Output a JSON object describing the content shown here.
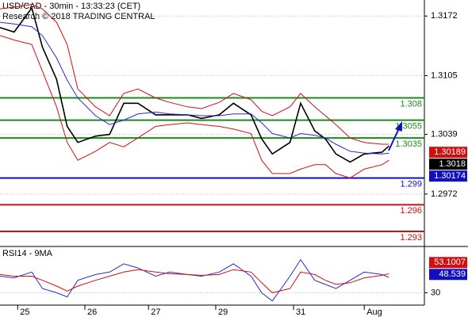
{
  "chart_data": [
    {
      "type": "line",
      "title": "USD/CAD - 30min - 13:33:23 (CET)",
      "subtitle": "Research © 2018 TRADING CENTRAL",
      "x": [
        0,
        4,
        9,
        12,
        16,
        19,
        22,
        27,
        31,
        35,
        39,
        44,
        48,
        53,
        57,
        62,
        66,
        71,
        74,
        77,
        82,
        85,
        89,
        92,
        95,
        99,
        103,
        108,
        110
      ],
      "xlim": [
        0,
        120
      ],
      "xticks": [
        {
          "value": 5,
          "label": "25"
        },
        {
          "value": 24,
          "label": "26"
        },
        {
          "value": 42,
          "label": "27"
        },
        {
          "value": 61,
          "label": "29"
        },
        {
          "value": 83,
          "label": "31"
        },
        {
          "value": 103,
          "label": "Aug"
        }
      ],
      "ylim": [
        1.319,
        1.2914
      ],
      "yticks": [
        1.3172,
        1.3105,
        1.3039,
        1.2972
      ],
      "grid": true,
      "series": [
        {
          "color": "#000000",
          "values": [
            1.3159,
            1.3154,
            1.3181,
            1.3137,
            1.3101,
            1.3048,
            1.303,
            1.3037,
            1.3039,
            1.3074,
            1.3074,
            1.3061,
            1.3061,
            1.3061,
            1.3057,
            1.3061,
            1.3074,
            1.3061,
            1.3034,
            1.3017,
            1.303,
            1.3074,
            1.3043,
            1.3034,
            1.3017,
            1.3008,
            1.3017,
            1.3019,
            1.3026
          ]
        },
        {
          "color": "#2a2ad0",
          "values": [
            1.3165,
            1.3163,
            1.316,
            1.315,
            1.3125,
            1.31,
            1.308,
            1.306,
            1.305,
            1.3055,
            1.3062,
            1.3064,
            1.3062,
            1.3061,
            1.306,
            1.306,
            1.3062,
            1.3062,
            1.3052,
            1.304,
            1.3035,
            1.304,
            1.3038,
            1.3035,
            1.3028,
            1.302,
            1.3018,
            1.3017,
            1.3018
          ]
        },
        {
          "color": "#d01010",
          "values": [
            1.318,
            1.3182,
            1.3185,
            1.318,
            1.3165,
            1.314,
            1.309,
            1.307,
            1.306,
            1.3085,
            1.309,
            1.308,
            1.3075,
            1.307,
            1.3068,
            1.3075,
            1.3085,
            1.3078,
            1.3065,
            1.306,
            1.307,
            1.3085,
            1.307,
            1.306,
            1.305,
            1.3035,
            1.303,
            1.3028,
            1.3028
          ]
        },
        {
          "color": "#d01010",
          "values": [
            1.315,
            1.3145,
            1.314,
            1.311,
            1.307,
            1.303,
            1.301,
            1.302,
            1.303,
            1.3025,
            1.3035,
            1.3048,
            1.305,
            1.3052,
            1.305,
            1.3048,
            1.3045,
            1.304,
            1.301,
            1.2995,
            1.2995,
            1.3,
            1.3005,
            1.3005,
            1.2995,
            1.299,
            1.3,
            1.3005,
            1.301
          ]
        }
      ],
      "levels": [
        {
          "value": 1.308,
          "color": "#1a8a1a"
        },
        {
          "value": 1.3055,
          "color": "#1a8a1a"
        },
        {
          "value": 1.3035,
          "color": "#1a8a1a"
        },
        {
          "value": 1.299,
          "color": "#1010c0"
        },
        {
          "value": 1.296,
          "color": "#d01010"
        },
        {
          "value": 1.293,
          "color": "#d01010"
        }
      ],
      "price_tags": [
        {
          "value": 1.30189,
          "color": "#d01010"
        },
        {
          "value": 1.3018,
          "color": "#000000"
        },
        {
          "value": 1.30174,
          "color": "#1010c0"
        }
      ]
    },
    {
      "type": "line",
      "title": "RSI14 - 9MA",
      "x": [
        0,
        4,
        9,
        12,
        16,
        19,
        22,
        27,
        31,
        35,
        39,
        44,
        48,
        53,
        57,
        62,
        66,
        71,
        74,
        77,
        82,
        85,
        89,
        92,
        95,
        99,
        103,
        108,
        110
      ],
      "xlim": [
        0,
        120
      ],
      "ylim": [
        85,
        15
      ],
      "yticks": [
        30
      ],
      "series": [
        {
          "color": "#2a2ad0",
          "values": [
            50,
            48,
            55,
            35,
            30,
            25,
            45,
            52,
            55,
            65,
            60,
            50,
            55,
            52,
            50,
            55,
            65,
            50,
            30,
            20,
            50,
            70,
            45,
            40,
            35,
            45,
            55,
            52,
            48.5
          ]
        },
        {
          "color": "#d01010",
          "values": [
            52,
            50,
            50,
            45,
            38,
            32,
            38,
            45,
            50,
            55,
            58,
            55,
            53,
            52,
            51,
            52,
            58,
            55,
            42,
            30,
            35,
            55,
            52,
            45,
            40,
            42,
            48,
            51,
            53.1
          ]
        }
      ],
      "last_tags": [
        {
          "value": 53.1007,
          "color": "#d01010"
        },
        {
          "value": 48.539,
          "color": "#1010c0"
        }
      ]
    }
  ]
}
